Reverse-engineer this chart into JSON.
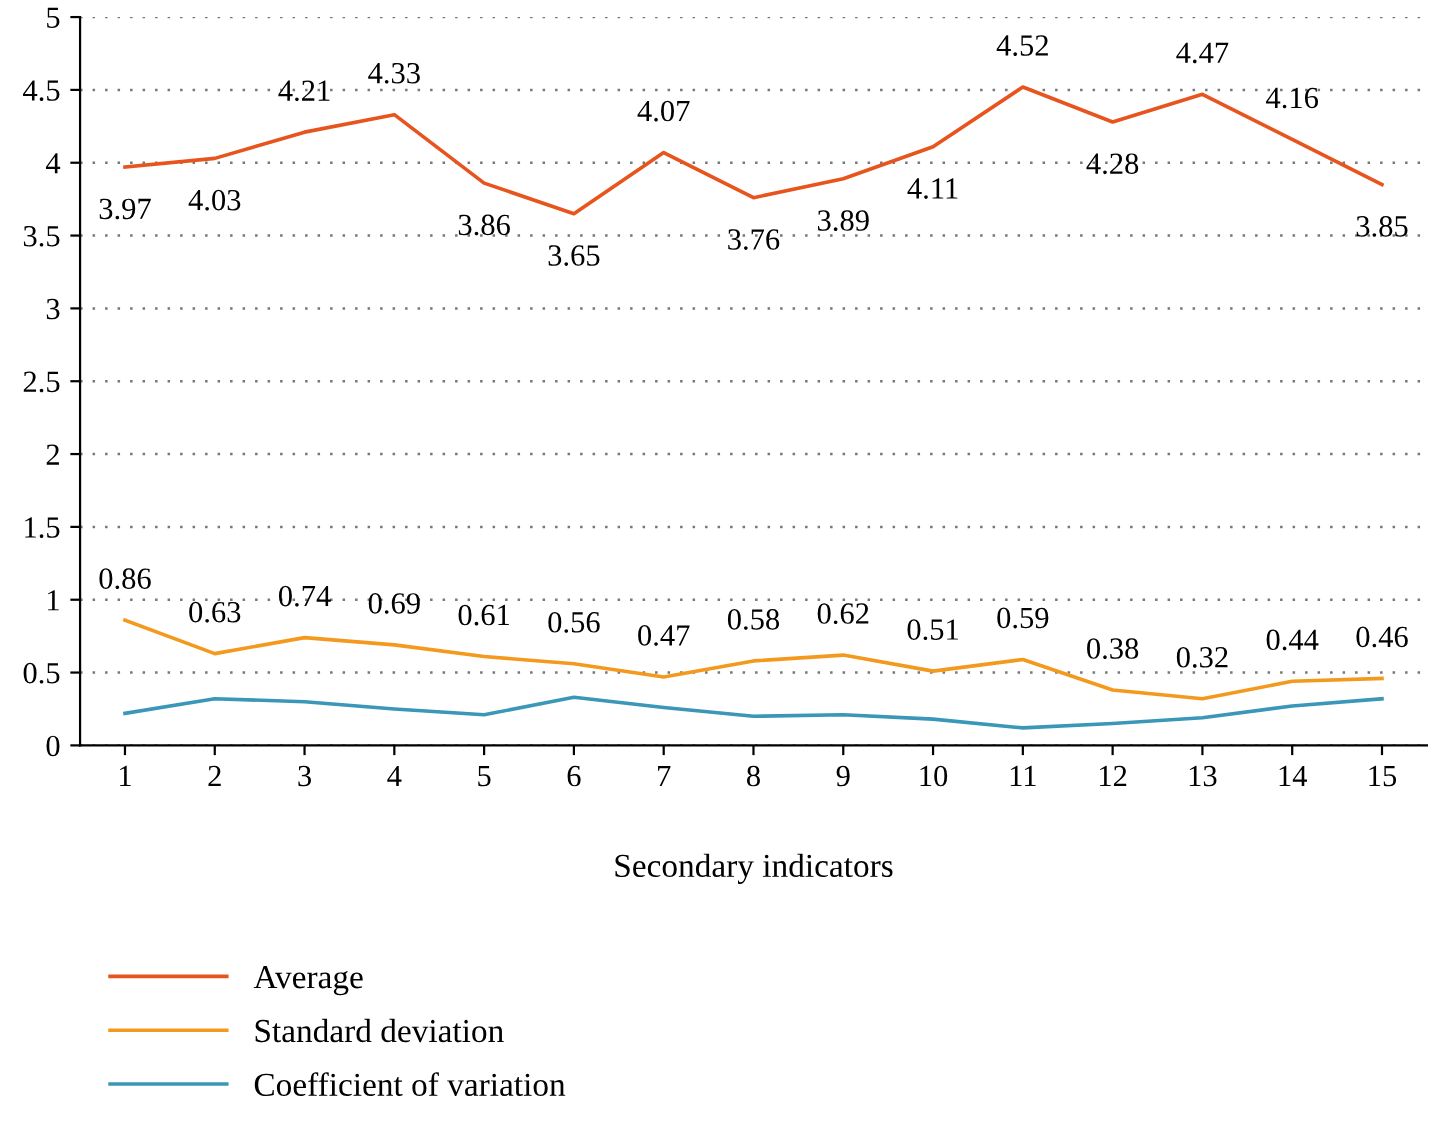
{
  "chart_data": {
    "type": "line",
    "xlabel": "Secondary indicators",
    "categories": [
      "1",
      "2",
      "3",
      "4",
      "5",
      "6",
      "7",
      "8",
      "9",
      "10",
      "11",
      "12",
      "13",
      "14",
      "15"
    ],
    "series": [
      {
        "name": "Average",
        "color": "#e8541e",
        "values": [
          3.97,
          4.03,
          4.21,
          4.33,
          3.86,
          3.65,
          4.07,
          3.76,
          3.89,
          4.11,
          4.52,
          4.28,
          4.47,
          4.16,
          3.85
        ],
        "value_labels": [
          "3.97",
          "4.03",
          "4.21",
          "4.33",
          "3.86",
          "3.65",
          "4.07",
          "3.76",
          "3.89",
          "4.11",
          "4.52",
          "4.28",
          "4.47",
          "4.16",
          "3.85"
        ]
      },
      {
        "name": "Standard deviation",
        "color": "#f39a1e",
        "values": [
          0.86,
          0.63,
          0.74,
          0.69,
          0.61,
          0.56,
          0.47,
          0.58,
          0.62,
          0.51,
          0.59,
          0.38,
          0.32,
          0.44,
          0.46
        ],
        "value_labels": [
          "0.86",
          "0.63",
          "0.74",
          "0.69",
          "0.61",
          "0.56",
          "0.47",
          "0.58",
          "0.62",
          "0.51",
          "0.59",
          "0.38",
          "0.32",
          "0.44",
          "0.46"
        ]
      },
      {
        "name": "Coefficient of variation",
        "color": "#3a97b8",
        "values": [
          0.22,
          0.32,
          0.3,
          0.25,
          0.21,
          0.33,
          0.26,
          0.2,
          0.21,
          0.18,
          0.12,
          0.15,
          0.19,
          0.27,
          0.32
        ]
      }
    ],
    "ylim": [
      0,
      5
    ],
    "yticks": [
      0,
      0.5,
      1,
      1.5,
      2,
      2.5,
      3,
      3.5,
      4,
      4.5,
      5
    ],
    "grid": "y",
    "legend": "bottom",
    "marker": "none",
    "line_style": "solid"
  }
}
